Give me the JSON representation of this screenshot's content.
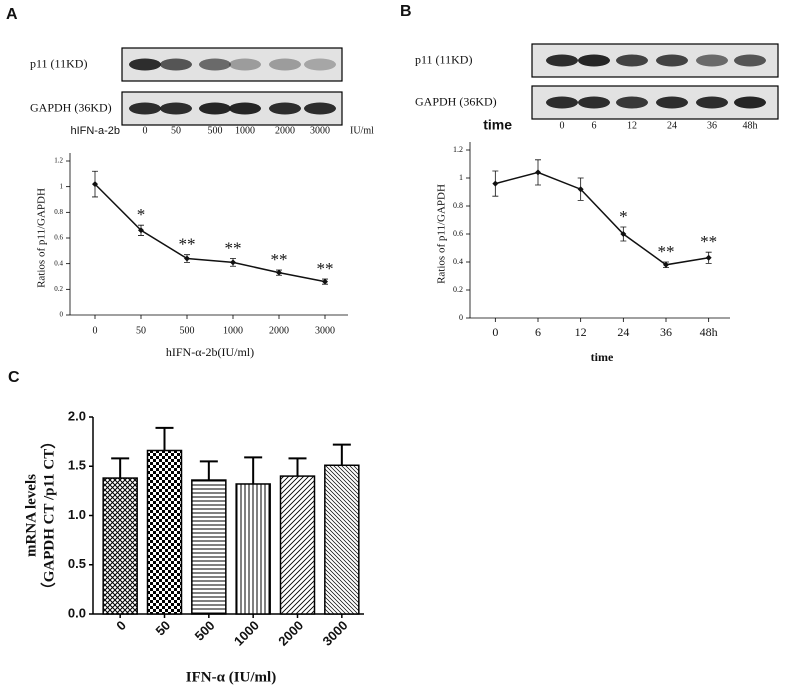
{
  "chart_data": [
    {
      "type": "line",
      "label": "A",
      "ylabel": "Ratios of p11/GAPDH",
      "xlabel": "hIFN-α-2b(IU/ml)",
      "categories": [
        "0",
        "50",
        "500",
        "1000",
        "2000",
        "3000"
      ],
      "values": [
        1.02,
        0.66,
        0.44,
        0.41,
        0.33,
        0.26
      ],
      "errors": [
        0.1,
        0.04,
        0.03,
        0.03,
        0.02,
        0.02
      ],
      "annotations": [
        null,
        "*",
        "**",
        "**",
        "**",
        "**"
      ],
      "ylim": [
        0,
        1.2
      ],
      "yticks": [
        0,
        0.2,
        0.4,
        0.6,
        0.8,
        1,
        1.2
      ],
      "color": "#111111"
    },
    {
      "type": "line",
      "label": "B",
      "ylabel": "Ratios of p11/GAPDH",
      "xlabel": "time",
      "categories": [
        "0",
        "6",
        "12",
        "24",
        "36",
        "48h"
      ],
      "values": [
        0.96,
        1.04,
        0.92,
        0.6,
        0.38,
        0.43
      ],
      "errors": [
        0.09,
        0.09,
        0.08,
        0.05,
        0.02,
        0.04
      ],
      "annotations": [
        null,
        null,
        null,
        "*",
        "**",
        "**"
      ],
      "ylim": [
        0,
        1.2
      ],
      "yticks": [
        0,
        0.2,
        0.4,
        0.6,
        0.8,
        1,
        1.2
      ],
      "color": "#111111"
    },
    {
      "type": "bar",
      "label": "C",
      "ylabel": [
        "mRNA levels",
        "（GAPDH CT /p11 CT）"
      ],
      "xlabel": "IFN-α (IU/ml)",
      "categories": [
        "0",
        "50",
        "500",
        "1000",
        "2000",
        "3000"
      ],
      "values": [
        1.38,
        1.66,
        1.36,
        1.32,
        1.4,
        1.51
      ],
      "errors": [
        0.2,
        0.23,
        0.19,
        0.27,
        0.18,
        0.21
      ],
      "ylim": [
        0,
        2
      ],
      "yticks": [
        {
          "value": 0,
          "label": "0.0"
        },
        {
          "value": 0.5,
          "label": "0.5"
        },
        {
          "value": 1,
          "label": "1.0"
        },
        {
          "value": 1.5,
          "label": "1.5"
        },
        {
          "value": 2,
          "label": "2.0"
        }
      ],
      "color": "#000000"
    }
  ],
  "blots": [
    {
      "rows": [
        "p11 (11KD)",
        "GAPDH (36KD)"
      ],
      "treatment": "hIFN-a-2b",
      "lanes": [
        "0",
        "50",
        "500",
        "1000",
        "2000",
        "3000"
      ],
      "unit": "IU/ml"
    },
    {
      "rows": [
        "p11 (11KD)",
        "GAPDH (36KD)"
      ],
      "treatment": "time",
      "lanes": [
        "0",
        "6",
        "12",
        "24",
        "36",
        "48h"
      ]
    }
  ]
}
